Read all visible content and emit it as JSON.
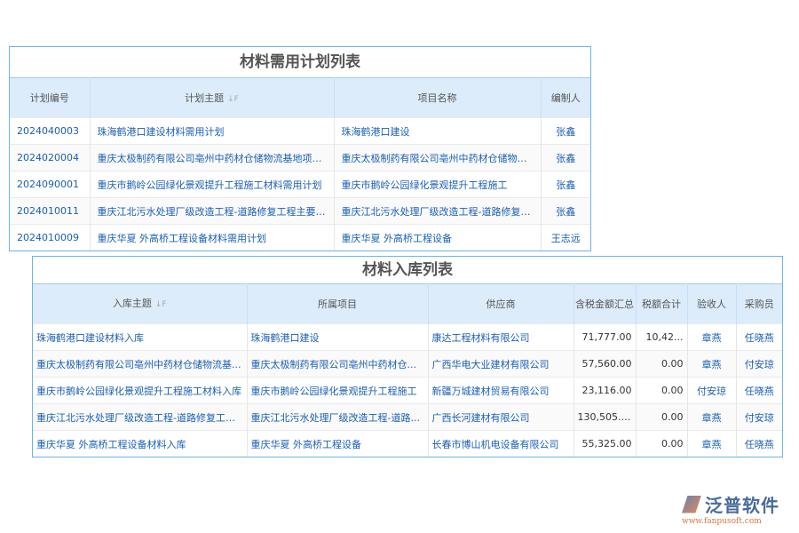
{
  "plan_table": {
    "title": "材料需用计划列表",
    "headers": [
      "计划编号",
      "计划主题",
      "项目名称",
      "编制人"
    ],
    "rows": [
      [
        "2024040003",
        "珠海鹤港口建设材料需用计划",
        "珠海鹤港口建设",
        "张鑫"
      ],
      [
        "2024020004",
        "重庆太极制药有限公司亳州中药材仓储物流基地项目...",
        "重庆太极制药有限公司亳州中药材仓储物流...",
        "张鑫"
      ],
      [
        "2024090001",
        "重庆市鹅岭公园绿化景观提升工程施工材料需用计划",
        "重庆市鹅岭公园绿化景观提升工程施工",
        "张鑫"
      ],
      [
        "2024010011",
        "重庆江北污水处理厂级改造工程-道路修复工程主要材料",
        "重庆江北污水处理厂级改造工程-道路修复工程",
        "张鑫"
      ],
      [
        "2024010009",
        "重庆华夏 外高桥工程设备材料需用计划",
        "重庆华夏 外高桥工程设备",
        "王志远"
      ]
    ]
  },
  "inbound_table": {
    "title": "材料入库列表",
    "headers": [
      "入库主题",
      "所属项目",
      "供应商",
      "含税金额汇总",
      "税额合计",
      "验收人",
      "采购员"
    ],
    "rows": [
      [
        "珠海鹤港口建设材料入库",
        "珠海鹤港口建设",
        "康达工程材料有限公司",
        "71,777.00",
        "10,42...",
        "章燕",
        "任晓燕"
      ],
      [
        "重庆太极制药有限公司亳州中药材仓储物流基...",
        "重庆太极制药有限公司亳州中药材仓...",
        "广西华电大业建材有限公司",
        "57,560.00",
        "0.00",
        "章燕",
        "付安琼"
      ],
      [
        "重庆市鹅岭公园绿化景观提升工程施工材料入库",
        "重庆市鹅岭公园绿化景观提升工程施工",
        "新疆万城建材贸易有限公司",
        "23,116.00",
        "0.00",
        "付安琼",
        "任晓燕"
      ],
      [
        "重庆江北污水处理厂级改造工程-道路修复工程...",
        "重庆江北污水处理厂级改造工程-道路...",
        "广西长河建材有限公司",
        "130,505.00",
        "0.00",
        "章燕",
        "付安琼"
      ],
      [
        "重庆华夏 外高桥工程设备材料入库",
        "重庆华夏 外高桥工程设备",
        "长春市博山机电设备有限公司",
        "55,325.00",
        "0.00",
        "章燕",
        "任晓燕"
      ]
    ]
  },
  "logo": {
    "name": "泛普软件",
    "url": "www.fanpusoft.com"
  },
  "sort_icon": "↓F"
}
